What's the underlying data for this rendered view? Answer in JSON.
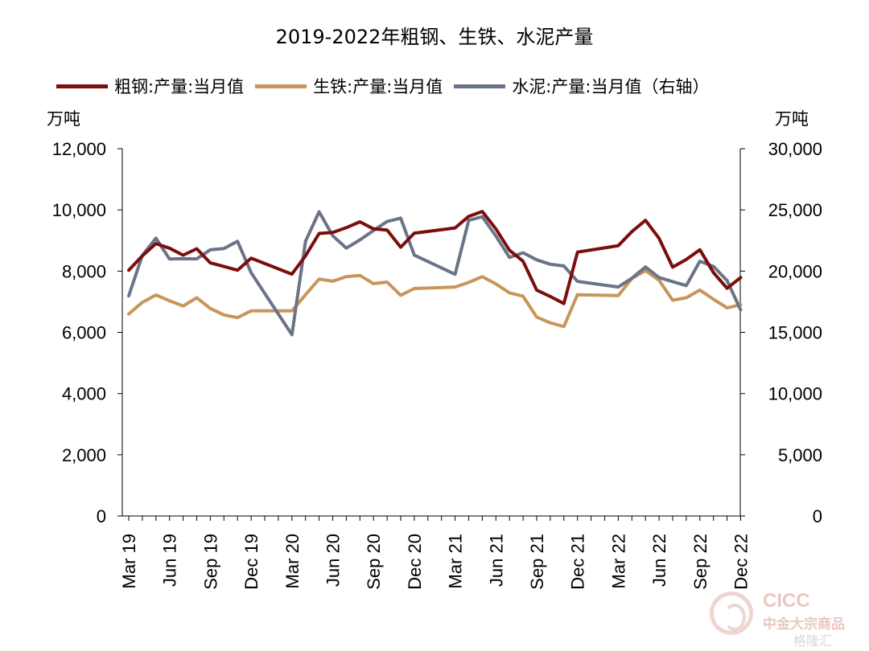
{
  "chart_data": {
    "type": "line",
    "title": "2019-2022年粗钢、生铁、水泥产量",
    "y_left_label": "万吨",
    "y_right_label": "万吨",
    "y_left_lim": [
      0,
      12000
    ],
    "y_right_lim": [
      0,
      30000
    ],
    "y_left_ticks": [
      "12,000",
      "10,000",
      "8,000",
      "6,000",
      "4,000",
      "2,000",
      "0"
    ],
    "y_right_ticks": [
      "30,000",
      "25,000",
      "20,000",
      "15,000",
      "10,000",
      "5,000",
      "0"
    ],
    "x_tick_labels": [
      "Mar 19",
      "Jun 19",
      "Sep 19",
      "Dec 19",
      "Mar 20",
      "Jun 20",
      "Sep 20",
      "Dec 20",
      "Mar 21",
      "Jun 21",
      "Sep 21",
      "Dec 21",
      "Mar 22",
      "Jun 22",
      "Sep 22",
      "Dec 22"
    ],
    "grid": false,
    "legend_position": "top",
    "categories": [
      "2019-03",
      "2019-04",
      "2019-05",
      "2019-06",
      "2019-07",
      "2019-08",
      "2019-09",
      "2019-10",
      "2019-11",
      "2019-12",
      "2020-03",
      "2020-04",
      "2020-05",
      "2020-06",
      "2020-07",
      "2020-08",
      "2020-09",
      "2020-10",
      "2020-11",
      "2020-12",
      "2021-03",
      "2021-04",
      "2021-05",
      "2021-06",
      "2021-07",
      "2021-08",
      "2021-09",
      "2021-10",
      "2021-11",
      "2021-12",
      "2022-03",
      "2022-04",
      "2022-05",
      "2022-06",
      "2022-07",
      "2022-08",
      "2022-09",
      "2022-10",
      "2022-11",
      "2022-12"
    ],
    "series": [
      {
        "name": "粗钢:产量:当月值",
        "axis": "left",
        "color": "#7b0d0d",
        "values": [
          8030,
          8500,
          8900,
          8750,
          8520,
          8730,
          8270,
          8150,
          8030,
          8420,
          7900,
          8500,
          9230,
          9260,
          9420,
          9610,
          9380,
          9340,
          8780,
          9240,
          9410,
          9790,
          9950,
          9380,
          8680,
          8320,
          7380,
          7170,
          6940,
          8620,
          8830,
          9290,
          9660,
          9070,
          8130,
          8380,
          8700,
          7950,
          7440,
          7790
        ]
      },
      {
        "name": "生铁:产量:当月值",
        "axis": "left",
        "color": "#c8955a",
        "values": [
          6600,
          6980,
          7220,
          7030,
          6860,
          7130,
          6780,
          6570,
          6480,
          6700,
          6700,
          7230,
          7740,
          7670,
          7820,
          7860,
          7590,
          7640,
          7210,
          7430,
          7480,
          7630,
          7820,
          7580,
          7290,
          7180,
          6500,
          6310,
          6190,
          7230,
          7200,
          7760,
          8020,
          7700,
          7050,
          7130,
          7380,
          7080,
          6800,
          6900
        ]
      },
      {
        "name": "水泥:产量:当月值（右轴）",
        "axis": "right",
        "color": "#6b7388",
        "values": [
          17980,
          21290,
          22690,
          20990,
          21010,
          21000,
          21740,
          21840,
          22440,
          19870,
          14810,
          22440,
          24850,
          22890,
          21880,
          22550,
          23320,
          24050,
          24330,
          21310,
          19740,
          24150,
          24440,
          22870,
          21120,
          21500,
          20920,
          20560,
          20420,
          19160,
          18700,
          19420,
          20340,
          19480,
          19140,
          18820,
          20810,
          20380,
          19230,
          16830
        ]
      }
    ]
  },
  "watermark": {
    "brand": "CICC",
    "name": "中金大宗商品",
    "site": "格隆汇"
  }
}
